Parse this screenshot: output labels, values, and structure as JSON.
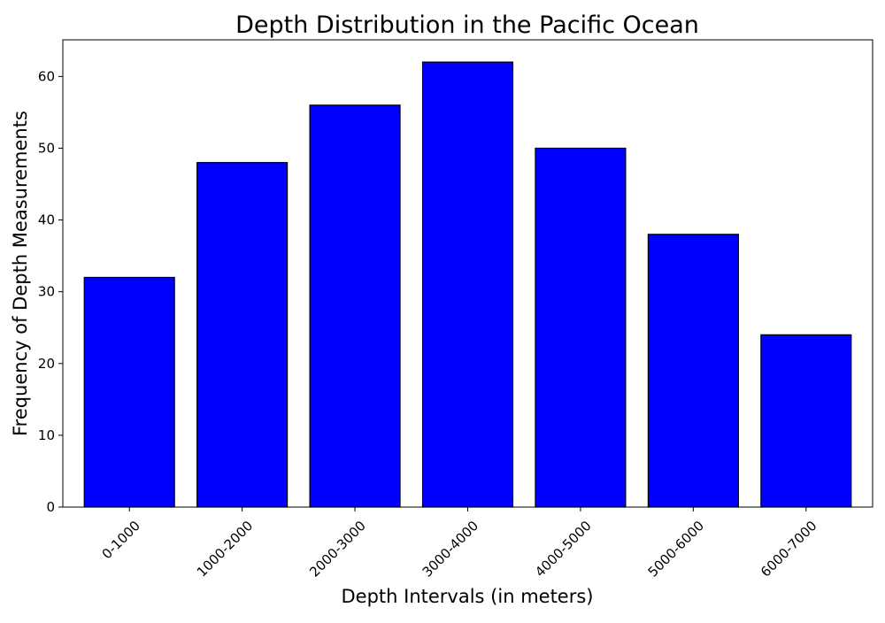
{
  "chart_data": {
    "type": "bar",
    "title": "Depth Distribution in the Pacific Ocean",
    "xlabel": "Depth Intervals (in meters)",
    "ylabel": "Frequency of Depth Measurements",
    "categories": [
      "0-1000",
      "1000-2000",
      "2000-3000",
      "3000-4000",
      "4000-5000",
      "5000-6000",
      "6000-7000"
    ],
    "values": [
      32,
      48,
      56,
      62,
      50,
      38,
      24
    ],
    "ylim": [
      0,
      65.1
    ],
    "yticks": [
      0,
      10,
      20,
      30,
      40,
      50,
      60
    ],
    "xtick_rotation": "45 degrees",
    "grid": false,
    "legend": "none",
    "colors": {
      "bar_fill": "#0000ff",
      "bar_edge": "#000000",
      "axis": "#000000",
      "background": "#ffffff"
    }
  }
}
